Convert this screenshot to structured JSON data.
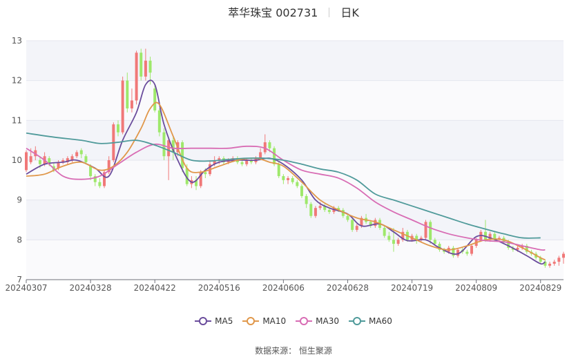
{
  "title": {
    "name": "萃华珠宝 002731",
    "period": "日K"
  },
  "source": "数据来源： 恒生聚源",
  "colors": {
    "up": "#f07878",
    "down": "#9ee86b",
    "MA5": "#6a4c9c",
    "MA10": "#e0974a",
    "MA30": "#d86cb4",
    "MA60": "#4f9a9a"
  },
  "chart_data": {
    "type": "candlestick",
    "y_ticks": [
      7,
      8,
      9,
      10,
      11,
      12,
      13
    ],
    "ylim": [
      7,
      13
    ],
    "x_tick_labels": [
      "20240307",
      "20240328",
      "20240422",
      "20240516",
      "20240606",
      "20240628",
      "20240719",
      "20240809",
      "20240829"
    ],
    "x_tick_index": [
      0,
      14,
      28,
      42,
      56,
      70,
      84,
      98,
      112
    ],
    "legend": [
      "MA5",
      "MA10",
      "MA30",
      "MA60"
    ],
    "candles": [
      [
        9.75,
        10.2,
        10.25,
        9.7
      ],
      [
        9.95,
        10.1,
        10.3,
        9.9
      ],
      [
        10.1,
        10.25,
        10.35,
        10.0
      ],
      [
        10.0,
        9.9,
        10.1,
        9.8
      ],
      [
        9.9,
        10.1,
        10.2,
        9.85
      ],
      [
        10.05,
        9.9,
        10.1,
        9.85
      ],
      [
        9.85,
        9.75,
        9.95,
        9.7
      ],
      [
        9.8,
        9.95,
        10.0,
        9.75
      ],
      [
        9.95,
        10.0,
        10.05,
        9.9
      ],
      [
        9.95,
        10.05,
        10.1,
        9.9
      ],
      [
        10.0,
        10.1,
        10.15,
        9.95
      ],
      [
        10.1,
        10.2,
        10.25,
        10.05
      ],
      [
        10.25,
        10.15,
        10.3,
        10.05
      ],
      [
        10.1,
        9.95,
        10.15,
        9.9
      ],
      [
        9.85,
        9.6,
        9.9,
        9.5
      ],
      [
        9.6,
        9.45,
        9.65,
        9.35
      ],
      [
        9.45,
        9.35,
        9.55,
        9.3
      ],
      [
        9.35,
        9.7,
        9.75,
        9.3
      ],
      [
        9.7,
        10.0,
        10.1,
        9.65
      ],
      [
        10.0,
        10.9,
        10.95,
        9.95
      ],
      [
        10.9,
        10.7,
        11.0,
        10.6
      ],
      [
        10.7,
        12.0,
        12.1,
        10.65
      ],
      [
        12.0,
        11.3,
        12.2,
        11.2
      ],
      [
        11.3,
        11.5,
        11.8,
        11.2
      ],
      [
        11.5,
        12.7,
        12.75,
        11.4
      ],
      [
        12.7,
        12.1,
        12.8,
        12.0
      ],
      [
        12.1,
        12.5,
        12.8,
        12.0
      ],
      [
        12.5,
        12.2,
        12.6,
        11.9
      ],
      [
        11.8,
        11.25,
        11.9,
        11.2
      ],
      [
        11.25,
        10.7,
        11.3,
        10.6
      ],
      [
        10.7,
        10.1,
        10.8,
        10.0
      ],
      [
        10.1,
        10.5,
        10.55,
        9.5
      ],
      [
        10.5,
        10.2,
        10.6,
        10.0
      ],
      [
        10.2,
        10.45,
        10.5,
        10.1
      ],
      [
        10.45,
        9.8,
        10.5,
        9.7
      ],
      [
        9.8,
        9.4,
        9.9,
        9.35
      ],
      [
        9.4,
        9.5,
        9.6,
        9.3
      ],
      [
        9.5,
        9.35,
        9.6,
        9.25
      ],
      [
        9.35,
        9.7,
        9.75,
        9.3
      ],
      [
        9.7,
        9.65,
        9.8,
        9.55
      ],
      [
        9.65,
        9.9,
        10.0,
        9.6
      ],
      [
        9.9,
        10.0,
        10.1,
        9.85
      ],
      [
        10.0,
        10.05,
        10.1,
        9.9
      ],
      [
        10.05,
        9.95,
        10.1,
        9.9
      ],
      [
        9.95,
        10.0,
        10.05,
        9.9
      ],
      [
        10.0,
        10.05,
        10.1,
        9.95
      ],
      [
        10.05,
        9.95,
        10.1,
        9.9
      ],
      [
        9.95,
        9.9,
        10.0,
        9.85
      ],
      [
        9.9,
        10.0,
        10.05,
        9.85
      ],
      [
        10.0,
        9.95,
        10.05,
        9.9
      ],
      [
        9.95,
        10.05,
        10.1,
        9.9
      ],
      [
        10.05,
        10.2,
        10.3,
        10.0
      ],
      [
        10.2,
        10.45,
        10.65,
        10.15
      ],
      [
        10.45,
        10.3,
        10.5,
        10.2
      ],
      [
        10.3,
        9.9,
        10.35,
        9.85
      ],
      [
        9.9,
        9.6,
        9.95,
        9.55
      ],
      [
        9.6,
        9.5,
        9.65,
        9.4
      ],
      [
        9.5,
        9.55,
        9.6,
        9.4
      ],
      [
        9.55,
        9.45,
        9.6,
        9.4
      ],
      [
        9.45,
        9.35,
        9.5,
        9.3
      ],
      [
        9.35,
        9.1,
        9.4,
        9.05
      ],
      [
        9.1,
        8.9,
        9.15,
        8.8
      ],
      [
        8.9,
        8.6,
        8.95,
        8.55
      ],
      [
        8.6,
        8.8,
        8.85,
        8.55
      ],
      [
        8.8,
        8.85,
        8.95,
        8.75
      ],
      [
        8.85,
        8.75,
        8.9,
        8.7
      ],
      [
        8.75,
        8.7,
        8.8,
        8.65
      ],
      [
        8.7,
        8.8,
        8.85,
        8.65
      ],
      [
        8.8,
        8.75,
        8.85,
        8.7
      ],
      [
        8.75,
        8.6,
        8.8,
        8.55
      ],
      [
        8.6,
        8.5,
        8.65,
        8.45
      ],
      [
        8.5,
        8.25,
        8.55,
        8.2
      ],
      [
        8.25,
        8.35,
        8.4,
        8.2
      ],
      [
        8.35,
        8.55,
        8.6,
        8.3
      ],
      [
        8.55,
        8.45,
        8.65,
        8.4
      ],
      [
        8.45,
        8.35,
        8.5,
        8.3
      ],
      [
        8.35,
        8.5,
        8.55,
        8.3
      ],
      [
        8.5,
        8.3,
        8.55,
        8.25
      ],
      [
        8.3,
        8.1,
        8.35,
        8.05
      ],
      [
        8.1,
        8.0,
        8.2,
        7.95
      ],
      [
        8.0,
        7.9,
        8.3,
        7.7
      ],
      [
        7.9,
        8.0,
        8.05,
        7.85
      ],
      [
        8.0,
        8.2,
        8.3,
        7.95
      ],
      [
        8.2,
        8.0,
        8.25,
        7.95
      ],
      [
        8.0,
        8.1,
        8.15,
        7.95
      ],
      [
        8.1,
        8.0,
        8.15,
        7.9
      ],
      [
        8.0,
        8.05,
        8.1,
        7.95
      ],
      [
        8.05,
        8.45,
        8.5,
        8.0
      ],
      [
        8.45,
        8.0,
        8.5,
        7.9
      ],
      [
        8.0,
        7.9,
        8.05,
        7.85
      ],
      [
        7.9,
        7.75,
        7.95,
        7.7
      ],
      [
        7.75,
        7.7,
        7.8,
        7.65
      ],
      [
        7.7,
        7.8,
        7.85,
        7.65
      ],
      [
        7.8,
        7.6,
        7.85,
        7.55
      ],
      [
        7.6,
        7.75,
        7.8,
        7.55
      ],
      [
        7.75,
        7.7,
        7.8,
        7.65
      ],
      [
        7.7,
        7.65,
        7.75,
        7.6
      ],
      [
        7.65,
        7.85,
        7.9,
        7.6
      ],
      [
        7.85,
        8.0,
        8.05,
        7.8
      ],
      [
        8.0,
        8.2,
        8.25,
        7.95
      ],
      [
        8.2,
        8.0,
        8.5,
        7.95
      ],
      [
        8.0,
        8.15,
        8.2,
        7.95
      ],
      [
        8.15,
        8.0,
        8.2,
        7.95
      ],
      [
        8.0,
        8.05,
        8.1,
        7.95
      ],
      [
        8.05,
        7.95,
        8.1,
        7.9
      ],
      [
        7.95,
        7.8,
        8.0,
        7.75
      ],
      [
        7.8,
        7.75,
        7.85,
        7.7
      ],
      [
        7.75,
        7.8,
        7.85,
        7.7
      ],
      [
        7.8,
        7.85,
        7.9,
        7.75
      ],
      [
        7.85,
        7.7,
        7.9,
        7.65
      ],
      [
        7.7,
        7.65,
        7.75,
        7.6
      ],
      [
        7.65,
        7.55,
        7.7,
        7.5
      ],
      [
        7.55,
        7.45,
        7.6,
        7.4
      ],
      [
        7.45,
        7.35,
        7.5,
        7.3
      ],
      [
        7.35,
        7.4,
        7.45,
        7.3
      ],
      [
        7.4,
        7.45,
        7.5,
        7.35
      ],
      [
        7.45,
        7.55,
        7.6,
        7.35
      ],
      [
        7.55,
        7.65,
        7.7,
        7.4
      ]
    ],
    "series": [
      {
        "name": "MA5",
        "points": [
          [
            0,
            9.65
          ],
          [
            4,
            9.9
          ],
          [
            8,
            9.95
          ],
          [
            11,
            10.0
          ],
          [
            15,
            9.8
          ],
          [
            18,
            9.6
          ],
          [
            21,
            10.5
          ],
          [
            24,
            11.2
          ],
          [
            26,
            11.9
          ],
          [
            28,
            11.9
          ],
          [
            30,
            10.9
          ],
          [
            33,
            10.0
          ],
          [
            36,
            9.45
          ],
          [
            39,
            9.75
          ],
          [
            42,
            9.95
          ],
          [
            46,
            10.0
          ],
          [
            50,
            10.0
          ],
          [
            53,
            10.05
          ],
          [
            56,
            9.9
          ],
          [
            60,
            9.5
          ],
          [
            63,
            9.0
          ],
          [
            66,
            8.8
          ],
          [
            70,
            8.65
          ],
          [
            73,
            8.35
          ],
          [
            77,
            8.4
          ],
          [
            80,
            8.2
          ],
          [
            83,
            7.98
          ],
          [
            87,
            8.0
          ],
          [
            90,
            7.8
          ],
          [
            94,
            7.65
          ],
          [
            98,
            8.08
          ],
          [
            101,
            8.05
          ],
          [
            105,
            7.85
          ],
          [
            109,
            7.6
          ],
          [
            112,
            7.4
          ],
          [
            113,
            7.45
          ]
        ]
      },
      {
        "name": "MA10",
        "points": [
          [
            0,
            9.6
          ],
          [
            4,
            9.65
          ],
          [
            8,
            9.85
          ],
          [
            12,
            9.95
          ],
          [
            16,
            9.75
          ],
          [
            19,
            9.85
          ],
          [
            22,
            10.2
          ],
          [
            25,
            10.8
          ],
          [
            27,
            11.3
          ],
          [
            29,
            11.4
          ],
          [
            32,
            10.6
          ],
          [
            35,
            9.8
          ],
          [
            38,
            9.7
          ],
          [
            42,
            9.85
          ],
          [
            46,
            10.0
          ],
          [
            50,
            10.05
          ],
          [
            53,
            9.95
          ],
          [
            56,
            9.85
          ],
          [
            60,
            9.45
          ],
          [
            64,
            9.0
          ],
          [
            68,
            8.75
          ],
          [
            72,
            8.55
          ],
          [
            76,
            8.45
          ],
          [
            80,
            8.25
          ],
          [
            84,
            8.05
          ],
          [
            88,
            7.85
          ],
          [
            92,
            7.75
          ],
          [
            96,
            7.85
          ],
          [
            100,
            8.0
          ],
          [
            104,
            8.0
          ],
          [
            108,
            7.8
          ],
          [
            112,
            7.55
          ],
          [
            113,
            7.5
          ]
        ]
      },
      {
        "name": "MA30",
        "points": [
          [
            0,
            10.3
          ],
          [
            4,
            10.0
          ],
          [
            8,
            9.6
          ],
          [
            12,
            9.52
          ],
          [
            16,
            9.6
          ],
          [
            20,
            9.9
          ],
          [
            24,
            10.2
          ],
          [
            28,
            10.4
          ],
          [
            32,
            10.3
          ],
          [
            36,
            10.3
          ],
          [
            40,
            10.3
          ],
          [
            44,
            10.3
          ],
          [
            48,
            10.35
          ],
          [
            52,
            10.3
          ],
          [
            56,
            10.0
          ],
          [
            60,
            9.75
          ],
          [
            64,
            9.65
          ],
          [
            68,
            9.55
          ],
          [
            72,
            9.3
          ],
          [
            76,
            8.95
          ],
          [
            80,
            8.7
          ],
          [
            84,
            8.5
          ],
          [
            88,
            8.3
          ],
          [
            92,
            8.15
          ],
          [
            96,
            8.05
          ],
          [
            100,
            7.98
          ],
          [
            104,
            7.95
          ],
          [
            108,
            7.85
          ],
          [
            112,
            7.75
          ],
          [
            113,
            7.75
          ]
        ]
      },
      {
        "name": "MA60",
        "points": [
          [
            0,
            10.68
          ],
          [
            6,
            10.58
          ],
          [
            12,
            10.5
          ],
          [
            16,
            10.42
          ],
          [
            20,
            10.45
          ],
          [
            24,
            10.5
          ],
          [
            28,
            10.38
          ],
          [
            32,
            10.2
          ],
          [
            36,
            10.0
          ],
          [
            40,
            9.98
          ],
          [
            44,
            10.02
          ],
          [
            48,
            10.05
          ],
          [
            52,
            10.05
          ],
          [
            56,
            10.0
          ],
          [
            60,
            9.9
          ],
          [
            64,
            9.78
          ],
          [
            68,
            9.7
          ],
          [
            72,
            9.5
          ],
          [
            76,
            9.15
          ],
          [
            80,
            9.0
          ],
          [
            84,
            8.85
          ],
          [
            88,
            8.7
          ],
          [
            92,
            8.55
          ],
          [
            96,
            8.4
          ],
          [
            100,
            8.27
          ],
          [
            104,
            8.15
          ],
          [
            108,
            8.05
          ],
          [
            112,
            8.05
          ]
        ]
      }
    ]
  }
}
